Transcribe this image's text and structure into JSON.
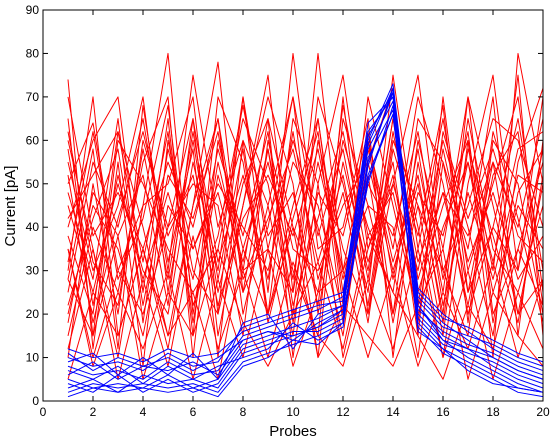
{
  "chart_data": {
    "type": "line",
    "xlabel": "Probes",
    "ylabel": "Current [pA]",
    "xlim": [
      0,
      20
    ],
    "ylim": [
      0,
      90
    ],
    "xticks": [
      0,
      2,
      4,
      6,
      8,
      10,
      12,
      14,
      16,
      18,
      20
    ],
    "yticks": [
      0,
      10,
      20,
      30,
      40,
      50,
      60,
      70,
      80,
      90
    ],
    "x": [
      1,
      2,
      3,
      4,
      5,
      6,
      7,
      8,
      9,
      10,
      11,
      12,
      13,
      14,
      15,
      16,
      17,
      18,
      19,
      20
    ],
    "grid": false,
    "legend": "none",
    "series": [
      {
        "color": "#ff0000",
        "values": [
          74,
          12,
          55,
          8,
          60,
          30,
          20,
          70,
          35,
          60,
          40,
          15,
          55,
          72,
          25,
          45,
          60,
          30,
          75,
          15
        ]
      },
      {
        "color": "#ff0000",
        "values": [
          60,
          35,
          10,
          45,
          80,
          20,
          55,
          30,
          65,
          10,
          50,
          75,
          35,
          55,
          15,
          70,
          25,
          55,
          40,
          65
        ]
      },
      {
        "color": "#ff0000",
        "values": [
          50,
          64,
          30,
          20,
          40,
          65,
          15,
          45,
          75,
          25,
          80,
          30,
          45,
          20,
          60,
          35,
          70,
          45,
          20,
          50
        ]
      },
      {
        "color": "#ff0000",
        "values": [
          38,
          20,
          62,
          40,
          15,
          45,
          78,
          25,
          40,
          70,
          20,
          55,
          30,
          65,
          40,
          10,
          50,
          75,
          30,
          58
        ]
      },
      {
        "color": "#ff0000",
        "values": [
          25,
          55,
          40,
          65,
          30,
          75,
          40,
          60,
          20,
          45,
          65,
          25,
          60,
          35,
          70,
          50,
          20,
          40,
          65,
          30
        ]
      },
      {
        "color": "#ff0000",
        "values": [
          15,
          40,
          25,
          55,
          70,
          10,
          60,
          35,
          55,
          30,
          15,
          70,
          20,
          50,
          30,
          60,
          40,
          15,
          55,
          72
        ]
      },
      {
        "color": "#ff0000",
        "values": [
          45,
          25,
          50,
          30,
          20,
          55,
          30,
          70,
          25,
          80,
          35,
          40,
          65,
          10,
          55,
          25,
          65,
          35,
          25,
          45
        ]
      },
      {
        "color": "#ff0000",
        "values": [
          30,
          70,
          15,
          35,
          55,
          40,
          65,
          20,
          45,
          15,
          60,
          35,
          20,
          60,
          45,
          30,
          15,
          60,
          50,
          20
        ]
      },
      {
        "color": "#ff0000",
        "values": [
          55,
          30,
          45,
          70,
          25,
          60,
          25,
          50,
          65,
          40,
          25,
          60,
          40,
          25,
          65,
          55,
          35,
          70,
          15,
          60
        ]
      },
      {
        "color": "#ff0000",
        "values": [
          20,
          45,
          35,
          15,
          45,
          35,
          50,
          40,
          30,
          55,
          45,
          20,
          70,
          45,
          20,
          40,
          55,
          25,
          45,
          35
        ]
      },
      {
        "color": "#ff0000",
        "values": [
          65,
          15,
          60,
          50,
          35,
          25,
          35,
          65,
          50,
          20,
          70,
          50,
          25,
          75,
          35,
          65,
          30,
          50,
          70,
          25
        ]
      },
      {
        "color": "#ff0000",
        "values": [
          10,
          50,
          20,
          60,
          40,
          50,
          45,
          15,
          60,
          35,
          30,
          45,
          55,
          30,
          50,
          20,
          70,
          20,
          35,
          55
        ]
      },
      {
        "color": "#ff0000",
        "values": [
          40,
          60,
          70,
          25,
          65,
          15,
          70,
          55,
          20,
          65,
          50,
          10,
          35,
          50,
          75,
          30,
          45,
          65,
          60,
          40
        ]
      },
      {
        "color": "#ff0000",
        "values": [
          35,
          10,
          30,
          45,
          50,
          70,
          20,
          45,
          70,
          50,
          10,
          65,
          45,
          40,
          10,
          55,
          25,
          40,
          30,
          70
        ]
      },
      {
        "color": "#ff0000",
        "values": [
          70,
          38,
          48,
          35,
          12,
          45,
          65,
          30,
          35,
          25,
          55,
          30,
          60,
          20,
          45,
          15,
          60,
          10,
          80,
          50
        ]
      },
      {
        "color": "#ff0000",
        "values": [
          28,
          58,
          12,
          68,
          32,
          58,
          10,
          60,
          45,
          70,
          38,
          58,
          28,
          65,
          28,
          48,
          38,
          55,
          20,
          28
        ]
      },
      {
        "color": "#ff0000",
        "values": [
          48,
          28,
          65,
          18,
          58,
          35,
          48,
          25,
          58,
          28,
          65,
          22,
          50,
          38,
          62,
          28,
          55,
          32,
          58,
          62
        ]
      },
      {
        "color": "#ff0000",
        "values": [
          18,
          48,
          38,
          52,
          22,
          65,
          32,
          52,
          28,
          62,
          28,
          48,
          18,
          58,
          38,
          68,
          18,
          62,
          42,
          18
        ]
      },
      {
        "color": "#ff0000",
        "values": [
          58,
          22,
          52,
          28,
          48,
          28,
          58,
          38,
          62,
          18,
          48,
          38,
          62,
          28,
          58,
          22,
          48,
          28,
          52,
          48
        ]
      },
      {
        "color": "#ff0000",
        "values": [
          32,
          62,
          28,
          42,
          68,
          22,
          38,
          68,
          38,
          48,
          22,
          68,
          38,
          48,
          22,
          58,
          32,
          48,
          28,
          38
        ]
      },
      {
        "color": "#ff0000",
        "values": [
          52,
          18,
          42,
          62,
          38,
          52,
          22,
          42,
          52,
          38,
          58,
          28,
          52,
          18,
          48,
          38,
          62,
          18,
          48,
          58
        ]
      },
      {
        "color": "#ff0000",
        "values": [
          22,
          42,
          58,
          22,
          52,
          42,
          62,
          28,
          42,
          58,
          32,
          52,
          22,
          62,
          32,
          48,
          22,
          52,
          62,
          22
        ]
      },
      {
        "color": "#ff0000",
        "values": [
          62,
          32,
          22,
          58,
          28,
          62,
          28,
          58,
          18,
          42,
          62,
          18,
          58,
          32,
          52,
          18,
          58,
          38,
          18,
          52
        ]
      },
      {
        "color": "#ff0000",
        "values": [
          42,
          52,
          62,
          32,
          62,
          18,
          52,
          32,
          58,
          22,
          42,
          62,
          32,
          52,
          18,
          62,
          42,
          58,
          38,
          32
        ]
      },
      {
        "color": "#ff0000",
        "values": [
          12,
          35,
          5,
          28,
          8,
          38,
          12,
          30,
          10,
          32,
          15,
          8,
          28,
          12,
          35,
          10,
          30,
          5,
          25,
          12
        ]
      },
      {
        "color": "#ff0000",
        "values": [
          35,
          8,
          25,
          12,
          30,
          5,
          28,
          10,
          35,
          8,
          25,
          30,
          10,
          30,
          8,
          25,
          12,
          32,
          10,
          28
        ]
      },
      {
        "color": "#ff0000",
        "values": [
          5,
          25,
          15,
          35,
          15,
          25,
          5,
          35,
          20,
          40,
          10,
          22,
          15,
          8,
          22,
          35,
          5,
          25,
          15,
          8
        ]
      },
      {
        "color": "#ff0000",
        "values": [
          28,
          15,
          38,
          5,
          25,
          15,
          35,
          18,
          8,
          20,
          32,
          12,
          38,
          25,
          15,
          5,
          22,
          12,
          35,
          22
        ]
      },
      {
        "color": "#0000ff",
        "values": [
          3,
          5,
          2,
          6,
          4,
          5,
          3,
          11,
          13,
          15,
          17,
          20,
          50,
          68,
          22,
          15,
          12,
          8,
          5,
          3
        ]
      },
      {
        "color": "#0000ff",
        "values": [
          5,
          3,
          4,
          3,
          6,
          3,
          5,
          13,
          15,
          17,
          19,
          22,
          55,
          71,
          20,
          14,
          10,
          7,
          4,
          2
        ]
      },
      {
        "color": "#0000ff",
        "values": [
          8,
          6,
          7,
          5,
          9,
          6,
          7,
          15,
          17,
          19,
          21,
          24,
          60,
          73,
          24,
          18,
          14,
          10,
          7,
          5
        ]
      },
      {
        "color": "#0000ff",
        "values": [
          2,
          4,
          3,
          4,
          3,
          4,
          2,
          9,
          11,
          13,
          15,
          18,
          52,
          66,
          18,
          12,
          9,
          6,
          3,
          2
        ]
      },
      {
        "color": "#0000ff",
        "values": [
          10,
          8,
          9,
          7,
          11,
          8,
          9,
          17,
          19,
          21,
          23,
          25,
          62,
          70,
          26,
          20,
          16,
          12,
          9,
          7
        ]
      },
      {
        "color": "#0000ff",
        "values": [
          6,
          9,
          5,
          8,
          7,
          9,
          6,
          14,
          16,
          14,
          18,
          21,
          58,
          69,
          21,
          16,
          13,
          11,
          8,
          6
        ]
      },
      {
        "color": "#0000ff",
        "values": [
          4,
          2,
          6,
          2,
          5,
          2,
          4,
          12,
          14,
          16,
          16,
          19,
          54,
          72,
          19,
          13,
          11,
          9,
          6,
          4
        ]
      },
      {
        "color": "#0000ff",
        "values": [
          12,
          10,
          11,
          9,
          12,
          10,
          11,
          16,
          18,
          20,
          22,
          23,
          64,
          70,
          23,
          17,
          15,
          13,
          10,
          8
        ]
      },
      {
        "color": "#0000ff",
        "values": [
          7,
          5,
          8,
          4,
          8,
          5,
          8,
          10,
          12,
          18,
          14,
          17,
          56,
          67,
          17,
          11,
          8,
          5,
          2,
          1
        ]
      },
      {
        "color": "#0000ff",
        "values": [
          9,
          11,
          6,
          10,
          6,
          11,
          5,
          18,
          20,
          12,
          20,
          22,
          61,
          71,
          25,
          19,
          17,
          14,
          11,
          9
        ]
      },
      {
        "color": "#0000ff",
        "values": [
          1,
          3,
          2,
          3,
          2,
          3,
          1,
          8,
          10,
          14,
          13,
          18,
          51,
          66,
          16,
          12,
          7,
          4,
          3,
          2
        ]
      },
      {
        "color": "#0000ff",
        "values": [
          11,
          7,
          10,
          8,
          10,
          7,
          10,
          14,
          16,
          15,
          17,
          21,
          59,
          72,
          22,
          14,
          12,
          10,
          7,
          5
        ]
      }
    ]
  }
}
